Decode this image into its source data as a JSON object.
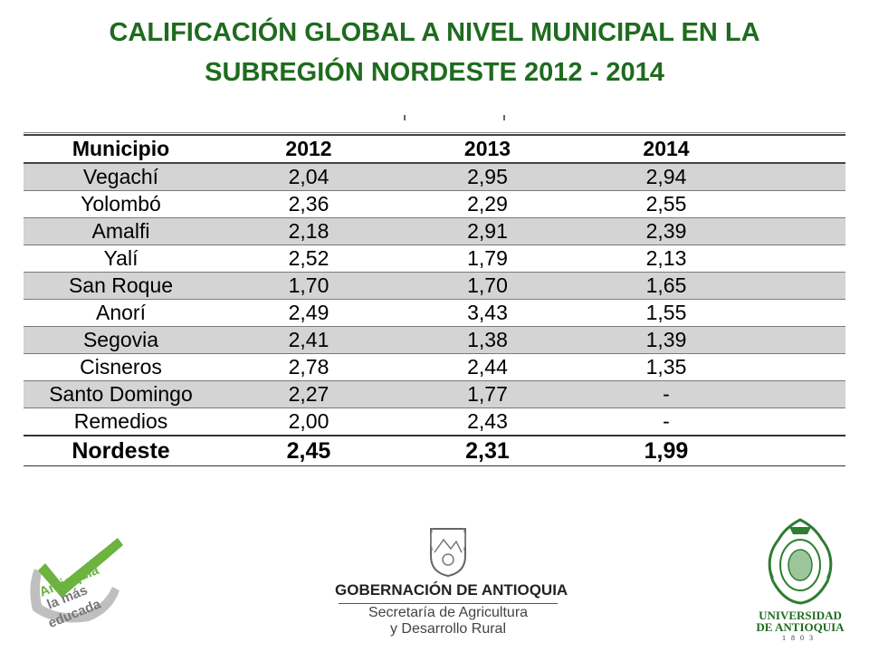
{
  "title": {
    "line1": "CALIFICACIÓN GLOBAL A NIVEL MUNICIPAL EN LA",
    "line2": "SUBREGIÓN NORDESTE 2012 - 2014"
  },
  "table": {
    "headers": [
      "Municipio",
      "2012",
      "2013",
      "2014"
    ],
    "rows": [
      [
        "Vegachí",
        "2,04",
        "2,95",
        "2,94"
      ],
      [
        "Yolombó",
        "2,36",
        "2,29",
        "2,55"
      ],
      [
        "Amalfi",
        "2,18",
        "2,91",
        "2,39"
      ],
      [
        "Yalí",
        "2,52",
        "1,79",
        "2,13"
      ],
      [
        "San Roque",
        "1,70",
        "1,70",
        "1,65"
      ],
      [
        "Anorí",
        "2,49",
        "3,43",
        "1,55"
      ],
      [
        "Segovia",
        "2,41",
        "1,38",
        "1,39"
      ],
      [
        "Cisneros",
        "2,78",
        "2,44",
        "1,35"
      ],
      [
        "Santo Domingo",
        "2,27",
        "1,77",
        "-"
      ],
      [
        "Remedios",
        "2,00",
        "2,43",
        "-"
      ]
    ],
    "total": [
      "Nordeste",
      "2,45",
      "2,31",
      "1,99"
    ]
  },
  "logos": {
    "left": {
      "line1": "Antioquia",
      "line2": "la más",
      "line3": "educada"
    },
    "center": {
      "name": "GOBERNACIÓN DE ANTIOQUIA",
      "sub1": "Secretaría de Agricultura",
      "sub2": "y Desarrollo Rural"
    },
    "right": {
      "line1": "UNIVERSIDAD",
      "line2": "DE ANTIOQUIA",
      "year": "1803"
    }
  },
  "colors": {
    "title": "#1f6b1f",
    "row_shade": "#d4d4d4",
    "check_green": "#6cb33f"
  }
}
